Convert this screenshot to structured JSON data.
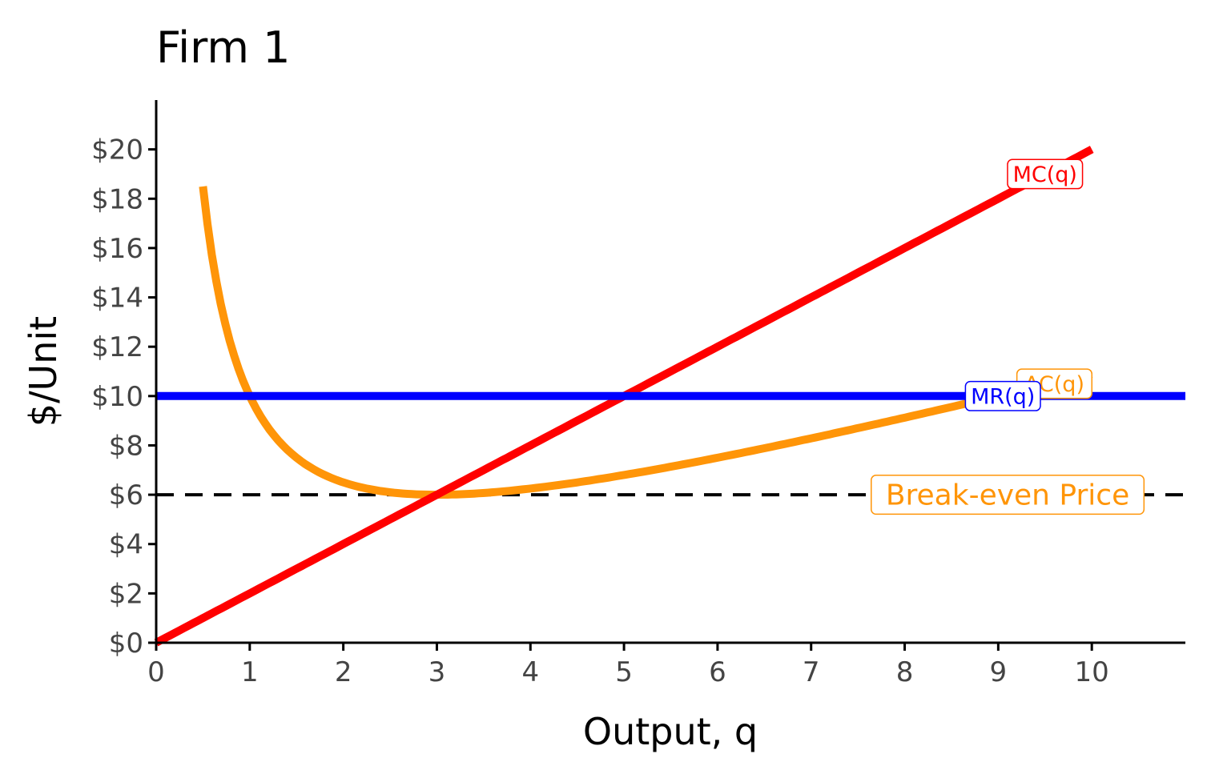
{
  "chart_data": {
    "type": "line",
    "title": "Firm 1",
    "xlabel": "Output, q",
    "ylabel": "$/Unit",
    "xlim": [
      0,
      11
    ],
    "ylim": [
      0,
      22
    ],
    "x_ticks": [
      0,
      1,
      2,
      3,
      4,
      5,
      6,
      7,
      8,
      9,
      10
    ],
    "x_tick_labels": [
      "0",
      "1",
      "2",
      "3",
      "4",
      "5",
      "6",
      "7",
      "8",
      "9",
      "10"
    ],
    "y_ticks": [
      0,
      2,
      4,
      6,
      8,
      10,
      12,
      14,
      16,
      18,
      20
    ],
    "y_tick_labels": [
      "$0",
      "$2",
      "$4",
      "$6",
      "$8",
      "$10",
      "$12",
      "$14",
      "$16",
      "$18",
      "$20"
    ],
    "grid": false,
    "series": [
      {
        "name": "MC(q)",
        "formula": "2q",
        "x_range": [
          0,
          10
        ],
        "color": "#ff0000",
        "label": "MC(q)",
        "label_at": [
          9.5,
          19
        ]
      },
      {
        "name": "AC(q)",
        "formula": "9/q + q",
        "x_range": [
          0.5,
          10
        ],
        "color": "#ff9508",
        "label": "AC(q)",
        "label_at": [
          9.6,
          10.5
        ]
      },
      {
        "name": "MR(q)",
        "formula": "10",
        "x_range": [
          0,
          11
        ],
        "color": "#0000ff",
        "label": "MR(q)",
        "label_at": [
          9.05,
          10
        ]
      },
      {
        "name": "Break-even Price",
        "formula": "6",
        "x_range": [
          0,
          11
        ],
        "color": "#000000",
        "dashed": true,
        "label": "Break-even Price",
        "label_color": "#ff9508",
        "label_at": [
          9.1,
          6
        ]
      }
    ]
  }
}
